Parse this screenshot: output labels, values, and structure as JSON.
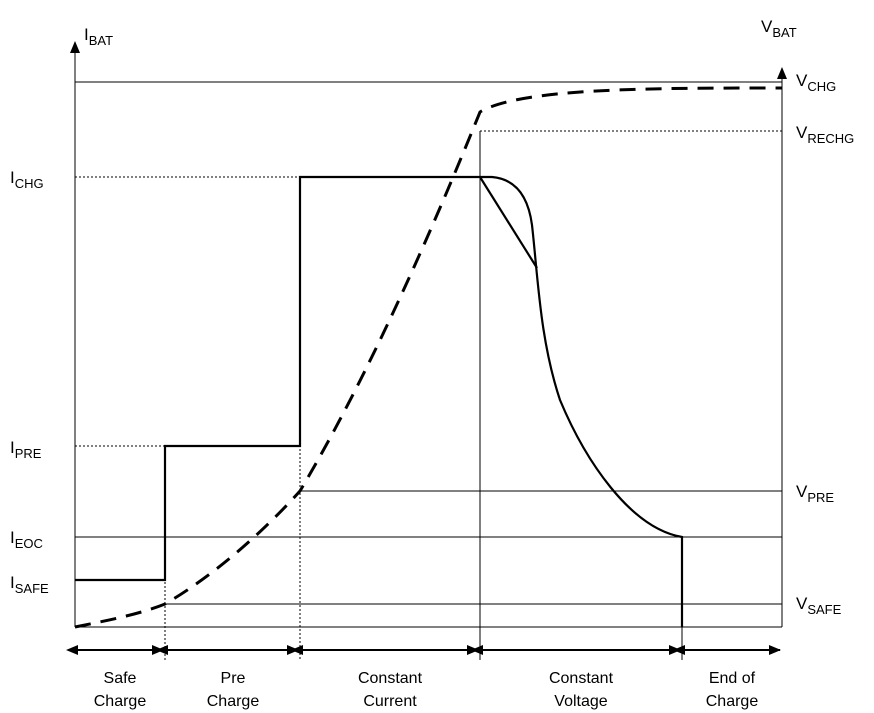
{
  "axes": {
    "left": {
      "main": "I",
      "sub": "BAT"
    },
    "right": {
      "main": "V",
      "sub": "BAT"
    }
  },
  "current_levels": {
    "chg": {
      "main": "I",
      "sub": "CHG"
    },
    "pre": {
      "main": "I",
      "sub": "PRE"
    },
    "eoc": {
      "main": "I",
      "sub": "EOC"
    },
    "safe": {
      "main": "I",
      "sub": "SAFE"
    }
  },
  "voltage_levels": {
    "chg": {
      "main": "V",
      "sub": "CHG"
    },
    "rechg": {
      "main": "V",
      "sub": "RECHG"
    },
    "pre": {
      "main": "V",
      "sub": "PRE"
    },
    "safe": {
      "main": "V",
      "sub": "SAFE"
    }
  },
  "phases": [
    {
      "line1": "Safe",
      "line2": "Charge"
    },
    {
      "line1": "Pre",
      "line2": "Charge"
    },
    {
      "line1": "Constant",
      "line2": "Current"
    },
    {
      "line1": "Constant",
      "line2": "Voltage"
    },
    {
      "line1": "End of",
      "line2": "Charge"
    }
  ],
  "curves": {
    "current": {
      "style": "solid",
      "color": "#000000"
    },
    "voltage": {
      "style": "dashed",
      "color": "#000000"
    }
  }
}
